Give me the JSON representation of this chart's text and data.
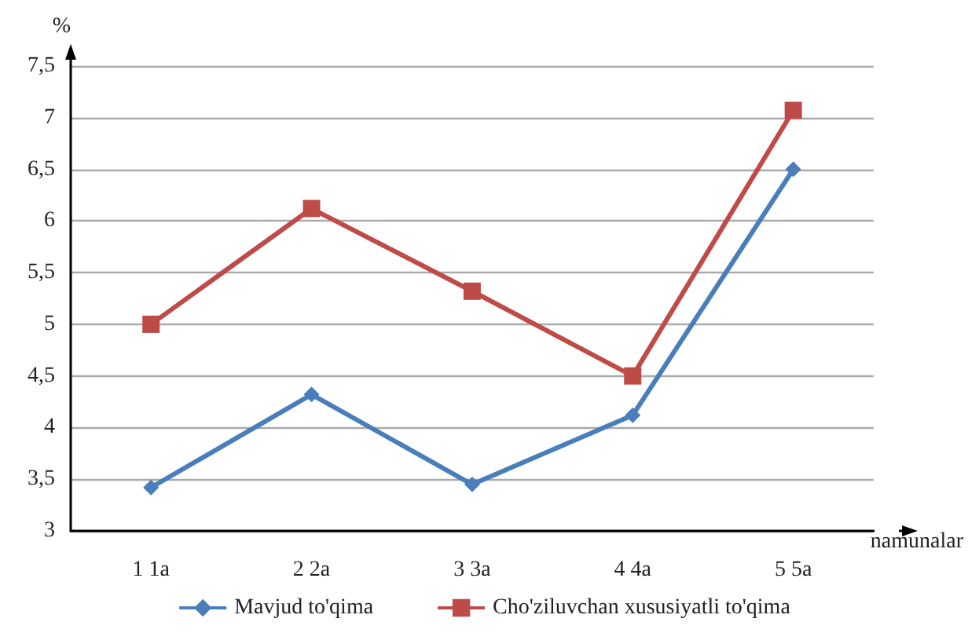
{
  "chart_data": {
    "type": "line",
    "xlabel": "namunalar",
    "ylabel": "%",
    "categories": [
      "1 1a",
      "2 2a",
      "3 3a",
      "4 4a",
      "5 5a"
    ],
    "series": [
      {
        "name": "Mavjud to'qima",
        "color": "#4a7ebb",
        "marker": "diamond",
        "values": [
          3.42,
          4.32,
          3.45,
          4.12,
          6.5
        ]
      },
      {
        "name": "Cho'ziluvchan xususiyatli to'qima",
        "color": "#be4b48",
        "marker": "square",
        "values": [
          5.0,
          6.12,
          5.32,
          4.5,
          7.07
        ]
      }
    ],
    "ylim": [
      3,
      7.5
    ],
    "yticks": [
      3,
      {
        "value": 3.5,
        "label": "3,5"
      },
      4,
      {
        "value": 4.5,
        "label": "4,5"
      },
      5,
      {
        "value": 5.5,
        "label": "5,5"
      },
      6,
      {
        "value": 6.5,
        "label": "6,5"
      },
      7,
      {
        "value": 7.5,
        "label": "7,5"
      }
    ],
    "grid": "y",
    "legend": "bottom"
  }
}
